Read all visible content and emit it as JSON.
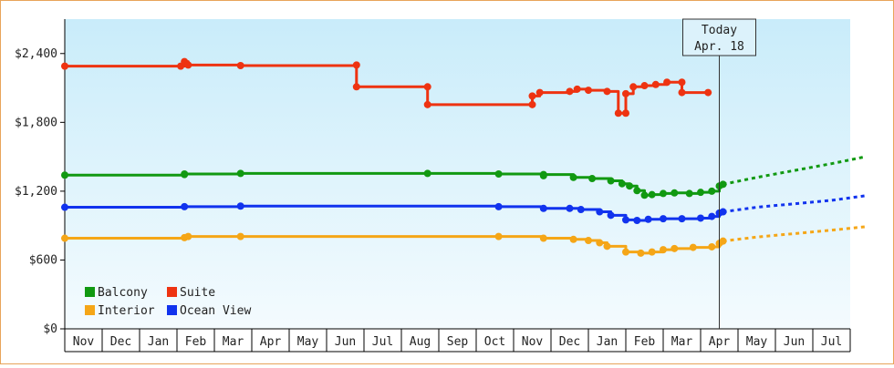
{
  "chart_data": {
    "type": "line",
    "title": "",
    "xlabel": "",
    "ylabel": "",
    "ylim": [
      0,
      2700
    ],
    "y_ticks": [
      {
        "value": 0,
        "label": "$0"
      },
      {
        "value": 600,
        "label": "$600"
      },
      {
        "value": 1200,
        "label": "$1,200"
      },
      {
        "value": 1800,
        "label": "$1,800"
      },
      {
        "value": 2400,
        "label": "$2,400"
      }
    ],
    "x_months": [
      "Nov",
      "Dec",
      "Jan",
      "Feb",
      "Mar",
      "Apr",
      "May",
      "Jun",
      "Jul",
      "Aug",
      "Sep",
      "Oct",
      "Nov",
      "Dec",
      "Jan",
      "Feb",
      "Mar",
      "Apr",
      "May",
      "Jun",
      "Jul"
    ],
    "today": {
      "label_line1": "Today",
      "label_line2": "Apr. 18",
      "x": 17.5
    },
    "legend": {
      "placement": "bottom-left"
    },
    "grid": false,
    "series": [
      {
        "name": "Balcony",
        "color": "#119911",
        "points": [
          [
            0,
            1340
          ],
          [
            3.2,
            1345
          ],
          [
            3.2,
            1350
          ],
          [
            4.7,
            1355
          ],
          [
            9.7,
            1355
          ],
          [
            11.6,
            1350
          ],
          [
            12.8,
            1335
          ],
          [
            12.8,
            1345
          ],
          [
            13.6,
            1320
          ],
          [
            14.1,
            1310
          ],
          [
            14.6,
            1290
          ],
          [
            14.9,
            1265
          ],
          [
            15.1,
            1245
          ],
          [
            15.3,
            1205
          ],
          [
            15.5,
            1165
          ],
          [
            15.7,
            1170
          ],
          [
            16.0,
            1180
          ],
          [
            16.3,
            1185
          ],
          [
            16.7,
            1180
          ],
          [
            17.0,
            1190
          ],
          [
            17.3,
            1200
          ],
          [
            17.5,
            1245
          ],
          [
            17.6,
            1260
          ]
        ],
        "forecast": [
          [
            17.6,
            1260
          ],
          [
            18.5,
            1320
          ],
          [
            19.5,
            1380
          ],
          [
            20.5,
            1440
          ],
          [
            21.4,
            1500
          ]
        ]
      },
      {
        "name": "Suite",
        "color": "#ee3311",
        "points": [
          [
            0,
            2290
          ],
          [
            3.1,
            2290
          ],
          [
            3.2,
            2330
          ],
          [
            3.3,
            2300
          ],
          [
            4.7,
            2295
          ],
          [
            7.8,
            2300
          ],
          [
            7.8,
            2110
          ],
          [
            9.7,
            2110
          ],
          [
            9.7,
            1955
          ],
          [
            12.5,
            1955
          ],
          [
            12.5,
            2030
          ],
          [
            12.7,
            2060
          ],
          [
            13.5,
            2070
          ],
          [
            13.7,
            2090
          ],
          [
            14.0,
            2080
          ],
          [
            14.5,
            2070
          ],
          [
            14.8,
            1880
          ],
          [
            15.0,
            1880
          ],
          [
            15.0,
            2050
          ],
          [
            15.2,
            2110
          ],
          [
            15.5,
            2120
          ],
          [
            15.8,
            2130
          ],
          [
            16.1,
            2150
          ],
          [
            16.5,
            2150
          ],
          [
            16.5,
            2060
          ],
          [
            17.2,
            2060
          ]
        ],
        "forecast": []
      },
      {
        "name": "Interior",
        "color": "#f5a617",
        "points": [
          [
            0,
            790
          ],
          [
            3.2,
            795
          ],
          [
            3.3,
            805
          ],
          [
            4.7,
            805
          ],
          [
            11.6,
            805
          ],
          [
            12.8,
            790
          ],
          [
            13.6,
            780
          ],
          [
            14.0,
            770
          ],
          [
            14.3,
            750
          ],
          [
            14.5,
            720
          ],
          [
            15.0,
            670
          ],
          [
            15.4,
            660
          ],
          [
            15.7,
            670
          ],
          [
            16.0,
            690
          ],
          [
            16.3,
            700
          ],
          [
            16.8,
            710
          ],
          [
            17.3,
            715
          ],
          [
            17.5,
            745
          ],
          [
            17.6,
            765
          ]
        ],
        "forecast": [
          [
            17.6,
            765
          ],
          [
            18.5,
            800
          ],
          [
            19.5,
            830
          ],
          [
            20.5,
            860
          ],
          [
            21.4,
            890
          ]
        ]
      },
      {
        "name": "Ocean View",
        "color": "#1133ee",
        "points": [
          [
            0,
            1060
          ],
          [
            3.2,
            1065
          ],
          [
            4.7,
            1070
          ],
          [
            11.6,
            1065
          ],
          [
            12.8,
            1050
          ],
          [
            13.5,
            1050
          ],
          [
            13.8,
            1040
          ],
          [
            14.3,
            1020
          ],
          [
            14.6,
            990
          ],
          [
            15.0,
            950
          ],
          [
            15.3,
            945
          ],
          [
            15.6,
            955
          ],
          [
            16.0,
            960
          ],
          [
            16.5,
            960
          ],
          [
            17.0,
            965
          ],
          [
            17.3,
            980
          ],
          [
            17.5,
            1010
          ],
          [
            17.6,
            1020
          ]
        ],
        "forecast": [
          [
            17.6,
            1020
          ],
          [
            18.5,
            1060
          ],
          [
            19.5,
            1090
          ],
          [
            20.5,
            1120
          ],
          [
            21.4,
            1160
          ]
        ]
      }
    ]
  }
}
